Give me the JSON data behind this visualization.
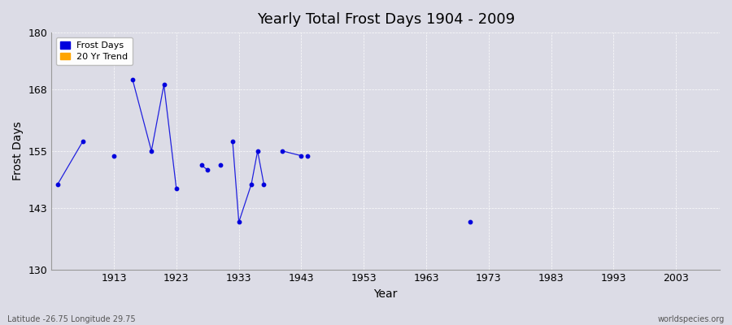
{
  "title": "Yearly Total Frost Days 1904 - 2009",
  "xlabel": "Year",
  "ylabel": "Frost Days",
  "xlim": [
    1903,
    2010
  ],
  "ylim": [
    130,
    180
  ],
  "yticks": [
    130,
    143,
    155,
    168,
    180
  ],
  "xticks": [
    1913,
    1923,
    1933,
    1943,
    1953,
    1963,
    1973,
    1983,
    1993,
    2003
  ],
  "bg_color": "#dcdce6",
  "data_color": "#0000dd",
  "trend_color": "#ffa500",
  "footer_left": "Latitude -26.75 Longitude 29.75",
  "footer_right": "worldspecies.org",
  "segments": [
    {
      "years": [
        1904,
        1908
      ],
      "frost_days": [
        148,
        157
      ]
    },
    {
      "years": [
        1913
      ],
      "frost_days": [
        154
      ]
    },
    {
      "years": [
        1916,
        1919,
        1921,
        1923
      ],
      "frost_days": [
        170,
        155,
        169,
        147
      ]
    },
    {
      "years": [
        1927,
        1928
      ],
      "frost_days": [
        152,
        151
      ]
    },
    {
      "years": [
        1930
      ],
      "frost_days": [
        152
      ]
    },
    {
      "years": [
        1932,
        1933,
        1935,
        1936,
        1937
      ],
      "frost_days": [
        157,
        140,
        148,
        155,
        148
      ]
    },
    {
      "years": [
        1940,
        1943
      ],
      "frost_days": [
        155,
        154
      ]
    },
    {
      "years": [
        1944
      ],
      "frost_days": [
        154
      ]
    },
    {
      "years": [
        1970
      ],
      "frost_days": [
        140
      ]
    }
  ]
}
